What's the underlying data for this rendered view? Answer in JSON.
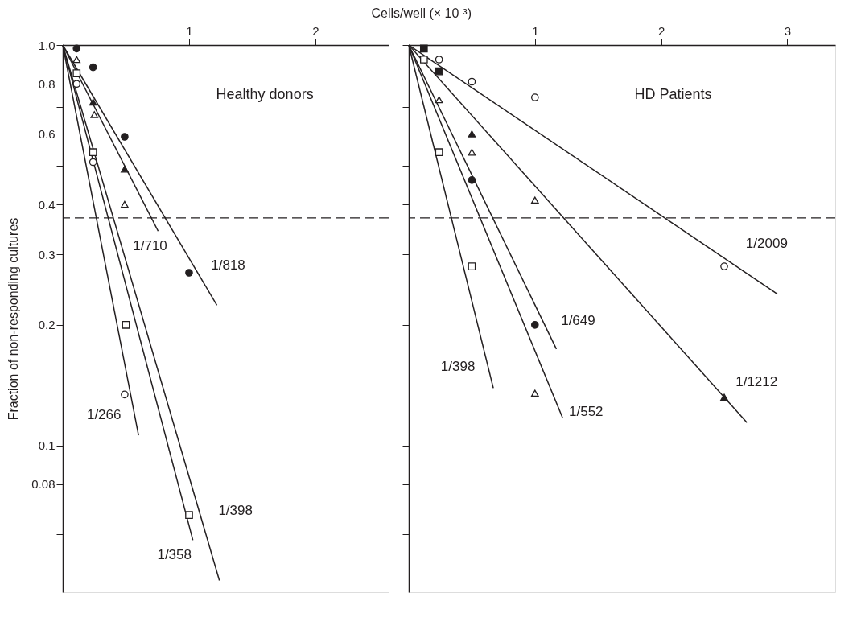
{
  "chart_data": [
    {
      "type": "scatter",
      "title": "Healthy donors",
      "xlabel": "Cells/well (× 10⁻³)",
      "ylabel": "Fraction of non-responding cultures",
      "xlim": [
        0,
        2.58
      ],
      "xticks": [
        1,
        2
      ],
      "ylim": [
        0.043,
        1.0
      ],
      "yticks": [
        {
          "value": 1,
          "label": "1.0"
        },
        {
          "value": 0.9,
          "label": null
        },
        0.8,
        {
          "value": 0.7,
          "label": null
        },
        0.6,
        {
          "value": 0.5,
          "label": null
        },
        0.4,
        0.3,
        0.2,
        0.1,
        0.08,
        {
          "value": 0.07,
          "label": null
        },
        {
          "value": 0.06,
          "label": null
        }
      ],
      "log": "y",
      "grid": false,
      "ref_lines": [
        {
          "axis": "y",
          "value": 0.37,
          "line_style": "dashed",
          "color": "#231f20"
        }
      ],
      "series": [
        {
          "marker": "circle",
          "color": "#231f20",
          "x": [
            0.11,
            0.24,
            0.49,
            1.0
          ],
          "values": [
            0.98,
            0.88,
            0.59,
            0.27
          ]
        },
        {
          "marker": "triangle",
          "color": "#231f20",
          "x": [
            0.24,
            0.49
          ],
          "values": [
            0.72,
            0.49
          ]
        },
        {
          "marker": "triangle",
          "color": "#ffffff",
          "x": [
            0.11,
            0.25,
            0.49
          ],
          "values": [
            0.92,
            0.67,
            0.4
          ]
        },
        {
          "marker": "square",
          "color": "#ffffff",
          "x": [
            0.11,
            0.24,
            0.5,
            1.0
          ],
          "values": [
            0.85,
            0.54,
            0.2,
            0.067
          ]
        },
        {
          "marker": "circle",
          "color": "#ffffff",
          "x": [
            0.11,
            0.24,
            0.49
          ],
          "values": [
            0.8,
            0.51,
            0.134
          ]
        },
        {
          "type": "line",
          "name": "1/818",
          "line_style": "solid",
          "color": "#231f20",
          "x": [
            0,
            1.22
          ],
          "values": [
            1,
            0.224
          ]
        },
        {
          "type": "line",
          "name": "1/710",
          "line_style": "solid",
          "color": "#231f20",
          "x": [
            0,
            0.755
          ],
          "values": [
            1,
            0.343
          ]
        },
        {
          "type": "line",
          "name": "1/266",
          "line_style": "solid",
          "color": "#231f20",
          "x": [
            0,
            0.6
          ],
          "values": [
            1,
            0.106
          ]
        },
        {
          "type": "line",
          "name": "1/358",
          "line_style": "solid",
          "color": "#231f20",
          "x": [
            0,
            1.03
          ],
          "values": [
            1,
            0.058
          ]
        },
        {
          "type": "line",
          "name": "1/398",
          "line_style": "solid",
          "color": "#231f20",
          "x": [
            0,
            1.24
          ],
          "values": [
            1,
            0.046
          ]
        }
      ]
    },
    {
      "type": "scatter",
      "title": "HD Patients",
      "xlim": [
        0,
        3.38
      ],
      "xticks": [
        1,
        2,
        3
      ],
      "ylim": [
        0.043,
        1.0
      ],
      "yticks": [
        1,
        0.9,
        0.8,
        0.7,
        0.6,
        0.5,
        0.4,
        0.3,
        0.2,
        0.1,
        0.08,
        0.07,
        0.06
      ],
      "log": "y",
      "grid": false,
      "tick_labels": "x",
      "ref_lines": [
        {
          "axis": "y",
          "value": 0.37,
          "line_style": "dashed",
          "color": "#231f20"
        }
      ],
      "series": [
        {
          "marker": "square",
          "color": "#231f20",
          "x": [
            0.12,
            0.24
          ],
          "values": [
            0.98,
            0.86
          ]
        },
        {
          "marker": "square",
          "color": "#ffffff",
          "x": [
            0.12,
            0.24,
            0.5
          ],
          "values": [
            0.92,
            0.54,
            0.28
          ]
        },
        {
          "marker": "circle",
          "color": "#ffffff",
          "x": [
            0.24,
            0.5,
            1.0,
            2.5
          ],
          "values": [
            0.92,
            0.81,
            0.74,
            0.28
          ]
        },
        {
          "marker": "triangle",
          "color": "#ffffff",
          "x": [
            0.24,
            0.5,
            1.0,
            1.0
          ],
          "values": [
            0.73,
            0.54,
            0.41,
            0.135
          ]
        },
        {
          "marker": "triangle",
          "color": "#231f20",
          "x": [
            0.5,
            2.5
          ],
          "values": [
            0.6,
            0.132
          ]
        },
        {
          "marker": "circle",
          "color": "#231f20",
          "x": [
            0.5,
            1.0
          ],
          "values": [
            0.46,
            0.2
          ]
        },
        {
          "type": "line",
          "name": "1/2009",
          "line_style": "solid",
          "color": "#231f20",
          "x": [
            0,
            2.92
          ],
          "values": [
            1,
            0.239
          ]
        },
        {
          "type": "line",
          "name": "1/1212",
          "line_style": "solid",
          "color": "#231f20",
          "x": [
            0,
            2.68
          ],
          "values": [
            1,
            0.114
          ]
        },
        {
          "type": "line",
          "name": "1/649",
          "line_style": "solid",
          "color": "#231f20",
          "x": [
            0,
            1.17
          ],
          "values": [
            1,
            0.174
          ]
        },
        {
          "type": "line",
          "name": "1/552",
          "line_style": "solid",
          "color": "#231f20",
          "x": [
            0,
            1.22
          ],
          "values": [
            1,
            0.117
          ]
        },
        {
          "type": "line",
          "name": "1/398",
          "line_style": "solid",
          "color": "#231f20",
          "x": [
            0,
            0.67
          ],
          "values": [
            1,
            0.139
          ]
        }
      ]
    }
  ]
}
